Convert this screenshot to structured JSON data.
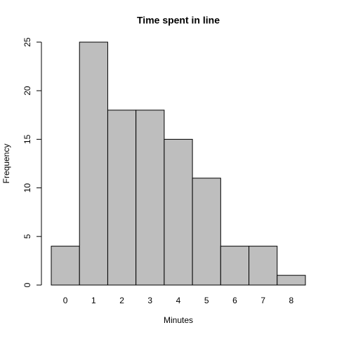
{
  "chart_data": {
    "type": "bar",
    "title": "Time spent in line",
    "x_label": "Minutes",
    "y_label": "Frequency",
    "categories": [
      "0",
      "1",
      "2",
      "3",
      "4",
      "5",
      "6",
      "7",
      "8"
    ],
    "values": [
      4,
      25,
      18,
      18,
      15,
      11,
      4,
      4,
      1
    ],
    "color": "#bebebe",
    "ylim": [
      0,
      25
    ],
    "yticks": [
      0,
      5,
      10,
      15,
      20,
      25
    ]
  }
}
